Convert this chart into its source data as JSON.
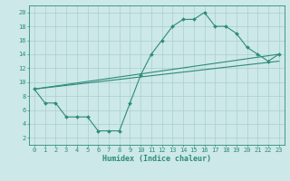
{
  "xlabel": "Humidex (Indice chaleur)",
  "xlim": [
    -0.5,
    23.5
  ],
  "ylim": [
    1,
    21
  ],
  "xticks": [
    0,
    1,
    2,
    3,
    4,
    5,
    6,
    7,
    8,
    9,
    10,
    11,
    12,
    13,
    14,
    15,
    16,
    17,
    18,
    19,
    20,
    21,
    22,
    23
  ],
  "yticks": [
    2,
    4,
    6,
    8,
    10,
    12,
    14,
    16,
    18,
    20
  ],
  "color": "#2e8b7a",
  "bg_color": "#cce8e8",
  "grid_color": "#aacfcf",
  "line1_x": [
    0,
    1,
    2,
    3,
    4,
    5,
    6,
    7,
    8,
    9,
    10,
    11,
    12,
    13,
    14,
    15,
    16,
    17,
    18,
    19,
    20,
    21,
    22,
    23
  ],
  "line1_y": [
    9,
    7,
    7,
    5,
    5,
    5,
    3,
    3,
    3,
    7,
    11,
    14,
    16,
    18,
    19,
    19,
    20,
    18,
    18,
    17,
    15,
    14,
    13,
    14
  ],
  "line2_x": [
    0,
    23
  ],
  "line2_y": [
    9,
    13
  ],
  "line3_x": [
    0,
    23
  ],
  "line3_y": [
    9,
    14
  ],
  "xlabel_fontsize": 6,
  "tick_fontsize": 5
}
